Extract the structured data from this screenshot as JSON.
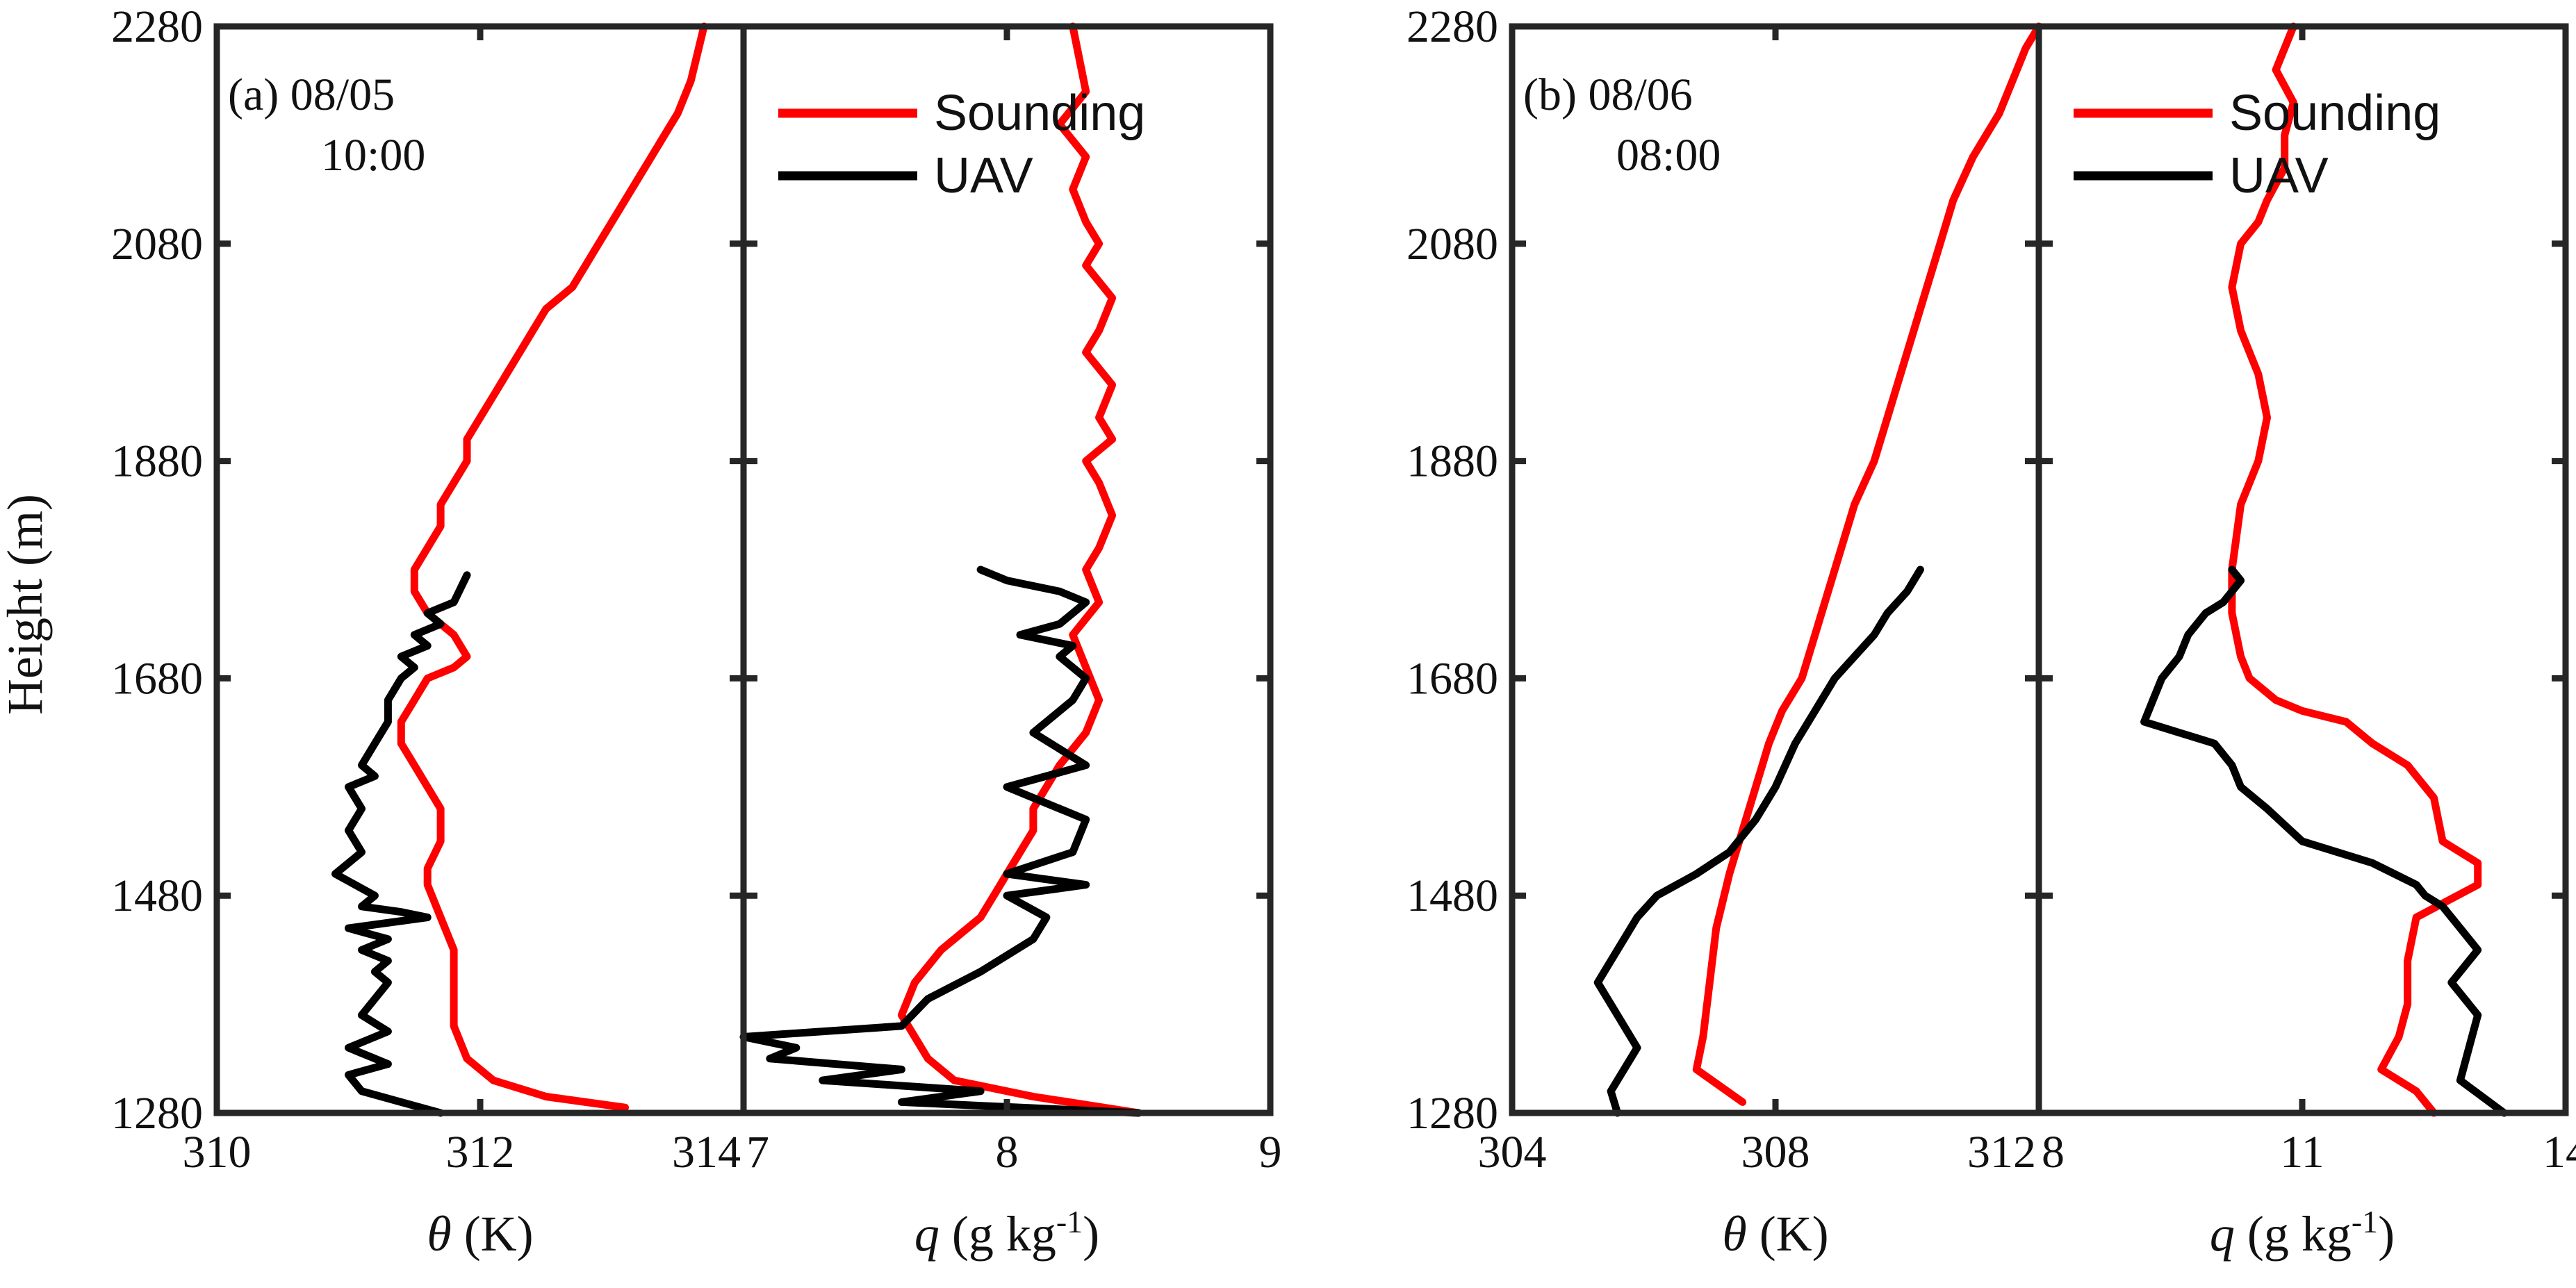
{
  "colors": {
    "sounding": "#ff0000",
    "uav": "#000000",
    "axis": "#262626"
  },
  "ylabel": "Height (m)",
  "chart_data": [
    {
      "type": "line",
      "panel": "a",
      "label": "(a) 08/05",
      "label_line2": "10:00",
      "xlabel_symbol": "θ",
      "xlabel_unit": " (K)",
      "xlim": [
        310,
        314
      ],
      "ylim": [
        1280,
        2280
      ],
      "xticks": [
        "310",
        "312",
        "314"
      ],
      "yticks": [
        "1280",
        "1480",
        "1680",
        "1880",
        "2080",
        "2280"
      ],
      "series": [
        {
          "name": "Sounding",
          "color": "#ff0000",
          "x": [
            313.1,
            312.5,
            312.1,
            311.9,
            311.8,
            311.8,
            311.8,
            311.7,
            311.6,
            311.6,
            311.7,
            311.7,
            311.6,
            311.5,
            311.4,
            311.4,
            311.5,
            311.6,
            311.8,
            311.9,
            311.8,
            311.6,
            311.5,
            311.5,
            311.6,
            311.7,
            311.7,
            311.8,
            311.9,
            311.9,
            312.0,
            312.1,
            312.2,
            312.3,
            312.4,
            312.5,
            312.7,
            312.8,
            312.9,
            313.0,
            313.1,
            313.2,
            313.3,
            313.4,
            313.5,
            313.6,
            313.7
          ],
          "y": [
            1285,
            1295,
            1310,
            1330,
            1360,
            1400,
            1430,
            1460,
            1490,
            1505,
            1530,
            1560,
            1580,
            1600,
            1620,
            1640,
            1660,
            1680,
            1690,
            1700,
            1720,
            1740,
            1760,
            1780,
            1800,
            1820,
            1840,
            1860,
            1880,
            1900,
            1920,
            1940,
            1960,
            1980,
            2000,
            2020,
            2040,
            2060,
            2080,
            2100,
            2120,
            2140,
            2160,
            2180,
            2200,
            2230,
            2280
          ]
        },
        {
          "name": "UAV",
          "color": "#000000",
          "x": [
            311.7,
            311.4,
            311.1,
            311.0,
            311.3,
            311.0,
            311.3,
            311.1,
            311.2,
            311.3,
            311.2,
            311.3,
            311.1,
            311.3,
            311.0,
            311.6,
            311.4,
            311.1,
            311.2,
            310.9,
            311.1,
            311.0,
            311.1,
            311.0,
            311.2,
            311.1,
            311.2,
            311.3,
            311.3,
            311.4,
            311.5,
            311.4,
            311.6,
            311.5,
            311.7,
            311.6,
            311.8,
            311.9
          ],
          "y": [
            1280,
            1290,
            1300,
            1315,
            1325,
            1340,
            1355,
            1370,
            1385,
            1400,
            1410,
            1420,
            1430,
            1440,
            1450,
            1460,
            1465,
            1470,
            1480,
            1500,
            1520,
            1540,
            1560,
            1580,
            1590,
            1600,
            1620,
            1640,
            1660,
            1680,
            1690,
            1700,
            1710,
            1720,
            1730,
            1740,
            1750,
            1775
          ]
        }
      ]
    },
    {
      "type": "line",
      "panel": "a",
      "xlabel_symbol": "q",
      "xlabel_unit": " (g kg",
      "xlabel_sup": "-1",
      "xlabel_close": ")",
      "xlim": [
        7,
        9
      ],
      "ylim": [
        1280,
        2280
      ],
      "xticks": [
        "7",
        "8",
        "9"
      ],
      "legend": [
        "Sounding",
        "UAV"
      ],
      "series": [
        {
          "name": "Sounding",
          "color": "#ff0000",
          "x": [
            8.5,
            8.1,
            7.8,
            7.7,
            7.65,
            7.6,
            7.65,
            7.75,
            7.9,
            7.95,
            8.0,
            8.05,
            8.1,
            8.1,
            8.15,
            8.2,
            8.3,
            8.35,
            8.3,
            8.25,
            8.35,
            8.3,
            8.35,
            8.4,
            8.35,
            8.3,
            8.4,
            8.35,
            8.4,
            8.3,
            8.35,
            8.4,
            8.3,
            8.35,
            8.3,
            8.25,
            8.3,
            8.2,
            8.3,
            8.25
          ],
          "y": [
            1280,
            1295,
            1310,
            1330,
            1350,
            1370,
            1400,
            1430,
            1460,
            1480,
            1500,
            1520,
            1540,
            1560,
            1580,
            1600,
            1630,
            1660,
            1690,
            1720,
            1750,
            1780,
            1800,
            1830,
            1860,
            1880,
            1900,
            1920,
            1950,
            1980,
            2000,
            2030,
            2060,
            2080,
            2100,
            2130,
            2160,
            2190,
            2220,
            2280
          ]
        },
        {
          "name": "UAV",
          "color": "#000000",
          "x": [
            8.5,
            7.6,
            7.9,
            7.3,
            7.6,
            7.1,
            7.2,
            7.0,
            7.6,
            7.7,
            7.9,
            8.1,
            8.15,
            8.0,
            8.3,
            8.0,
            8.25,
            8.3,
            8.0,
            8.3,
            8.1,
            8.25,
            8.3,
            8.2,
            8.25,
            8.05,
            8.2,
            8.25,
            8.3,
            8.2,
            8.0,
            7.9
          ],
          "y": [
            1280,
            1290,
            1300,
            1310,
            1320,
            1330,
            1340,
            1350,
            1360,
            1385,
            1410,
            1440,
            1460,
            1480,
            1490,
            1500,
            1520,
            1550,
            1580,
            1600,
            1630,
            1660,
            1680,
            1700,
            1710,
            1720,
            1730,
            1740,
            1750,
            1760,
            1770,
            1780
          ]
        }
      ]
    },
    {
      "type": "line",
      "panel": "b",
      "label": "(b) 08/06",
      "label_line2": "08:00",
      "xlabel_symbol": "θ",
      "xlabel_unit": " (K)",
      "xlim": [
        304,
        312
      ],
      "ylim": [
        1280,
        2280
      ],
      "xticks": [
        "304",
        "308",
        "312"
      ],
      "yticks": [
        "1280",
        "1480",
        "1680",
        "1880",
        "2080",
        "2280"
      ],
      "series": [
        {
          "name": "Sounding",
          "color": "#ff0000",
          "x": [
            307.5,
            306.8,
            306.9,
            307.0,
            307.1,
            307.3,
            307.5,
            307.7,
            307.9,
            308.1,
            308.4,
            308.6,
            308.8,
            309.0,
            309.2,
            309.5,
            309.7,
            309.9,
            310.1,
            310.3,
            310.5,
            310.7,
            311.0,
            311.2,
            311.4,
            311.6,
            311.8,
            312.0
          ],
          "y": [
            1290,
            1320,
            1350,
            1400,
            1450,
            1500,
            1540,
            1580,
            1620,
            1650,
            1680,
            1720,
            1760,
            1800,
            1840,
            1880,
            1920,
            1960,
            2000,
            2040,
            2080,
            2120,
            2160,
            2180,
            2200,
            2230,
            2260,
            2280
          ]
        },
        {
          "name": "UAV",
          "color": "#000000",
          "x": [
            305.6,
            305.5,
            305.9,
            305.6,
            305.3,
            305.6,
            305.9,
            306.2,
            306.8,
            307.3,
            307.7,
            308.0,
            308.3,
            308.6,
            308.9,
            309.2,
            309.5,
            309.7,
            310.0,
            310.1,
            310.2
          ],
          "y": [
            1280,
            1300,
            1340,
            1370,
            1400,
            1430,
            1460,
            1480,
            1500,
            1520,
            1550,
            1580,
            1620,
            1650,
            1680,
            1700,
            1720,
            1740,
            1760,
            1770,
            1780
          ]
        }
      ]
    },
    {
      "type": "line",
      "panel": "b",
      "xlabel_symbol": "q",
      "xlabel_unit": " (g kg",
      "xlabel_sup": "-1",
      "xlabel_close": ")",
      "xlim": [
        8,
        14
      ],
      "ylim": [
        1280,
        2280
      ],
      "xticks": [
        "8",
        "11",
        "14"
      ],
      "legend": [
        "Sounding",
        "UAV"
      ],
      "series": [
        {
          "name": "Sounding",
          "color": "#ff0000",
          "x": [
            12.5,
            12.3,
            11.9,
            12.1,
            12.2,
            12.2,
            12.3,
            13.0,
            13.0,
            12.6,
            12.5,
            12.2,
            11.8,
            11.5,
            11.0,
            10.7,
            10.4,
            10.3,
            10.2,
            10.2,
            10.3,
            10.5,
            10.6,
            10.5,
            10.3,
            10.2,
            10.3,
            10.5,
            10.6,
            10.8,
            10.8,
            10.9,
            10.7,
            10.8,
            10.9
          ],
          "y": [
            1280,
            1300,
            1320,
            1350,
            1380,
            1420,
            1460,
            1490,
            1510,
            1530,
            1570,
            1600,
            1620,
            1640,
            1650,
            1660,
            1680,
            1700,
            1740,
            1780,
            1840,
            1880,
            1920,
            1960,
            2000,
            2040,
            2080,
            2100,
            2120,
            2150,
            2180,
            2210,
            2240,
            2260,
            2280
          ]
        },
        {
          "name": "UAV",
          "color": "#000000",
          "x": [
            13.3,
            12.8,
            12.9,
            13.0,
            12.7,
            13.0,
            12.8,
            12.6,
            12.4,
            12.3,
            11.8,
            11.0,
            10.6,
            10.3,
            10.2,
            10.0,
            9.6,
            9.2,
            9.3,
            9.4,
            9.6,
            9.7,
            9.9,
            10.1,
            10.2,
            10.3,
            10.2
          ],
          "y": [
            1280,
            1310,
            1340,
            1370,
            1400,
            1430,
            1450,
            1470,
            1480,
            1490,
            1510,
            1530,
            1560,
            1580,
            1600,
            1620,
            1630,
            1640,
            1660,
            1680,
            1700,
            1720,
            1740,
            1750,
            1760,
            1770,
            1780
          ]
        }
      ]
    }
  ]
}
